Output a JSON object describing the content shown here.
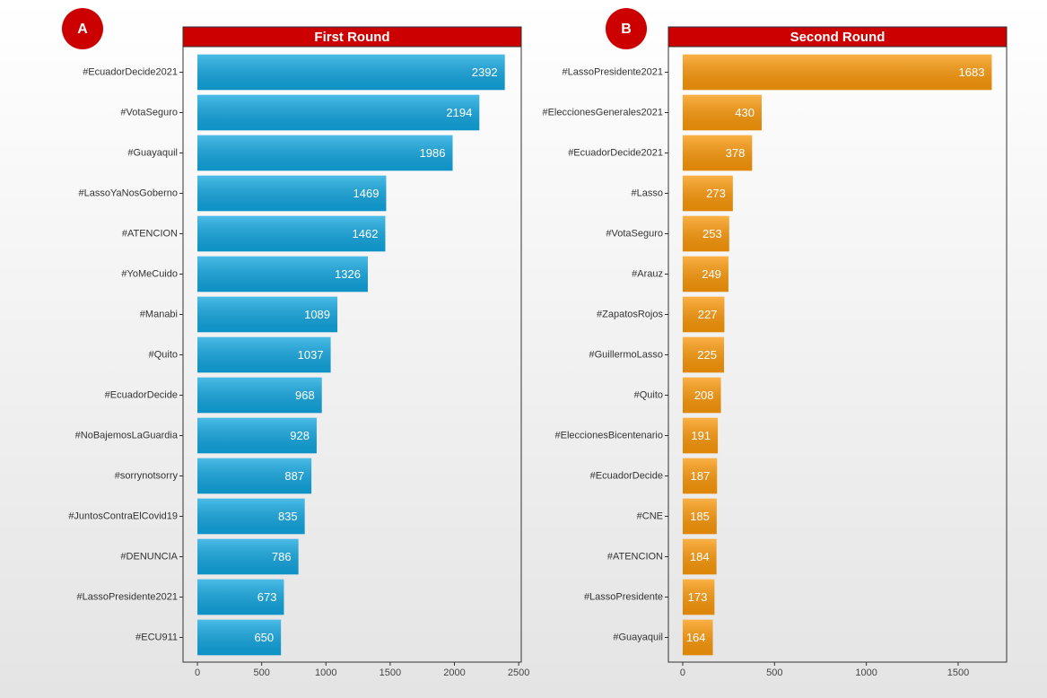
{
  "chart_data": [
    {
      "type": "bar",
      "orientation": "horizontal",
      "panel_label": "A",
      "title": "First Round",
      "categories": [
        "#EcuadorDecide2021",
        "#VotaSeguro",
        "#Guayaquil",
        "#LassoYaNosGoberno",
        "#ATENCION",
        "#YoMeCuido",
        "#Manabi",
        "#Quito",
        "#EcuadorDecide",
        "#NoBajemosLaGuardia",
        "#sorrynotsorry",
        "#JuntosContraElCovid19",
        "#DENUNCIA",
        "#LassoPresidente2021",
        "#ECU911"
      ],
      "values": [
        2392,
        2194,
        1986,
        1469,
        1462,
        1326,
        1089,
        1037,
        968,
        928,
        887,
        835,
        786,
        673,
        650
      ],
      "color": "#10a6e0",
      "xlim": [
        -112,
        2520
      ],
      "xticks": [
        0,
        500,
        1000,
        1500,
        2000,
        2500
      ]
    },
    {
      "type": "bar",
      "orientation": "horizontal",
      "panel_label": "B",
      "title": "Second Round",
      "categories": [
        "#LassoPresidente2021",
        "#EleccionesGenerales2021",
        "#EcuadorDecide2021",
        "#Lasso",
        "#VotaSeguro",
        "#Arauz",
        "#ZapatosRojos",
        "#GuillermoLasso",
        "#Quito",
        "#EleccionesBicentenario",
        "#EcuadorDecide",
        "#CNE",
        "#ATENCION",
        "#LassoPresidente",
        "#Guayaquil"
      ],
      "values": [
        1683,
        430,
        378,
        273,
        253,
        249,
        227,
        225,
        208,
        191,
        187,
        185,
        184,
        173,
        164
      ],
      "color": "#fb9808",
      "xlim": [
        -78,
        1764
      ],
      "xticks": [
        0,
        500,
        1000,
        1500
      ]
    }
  ]
}
